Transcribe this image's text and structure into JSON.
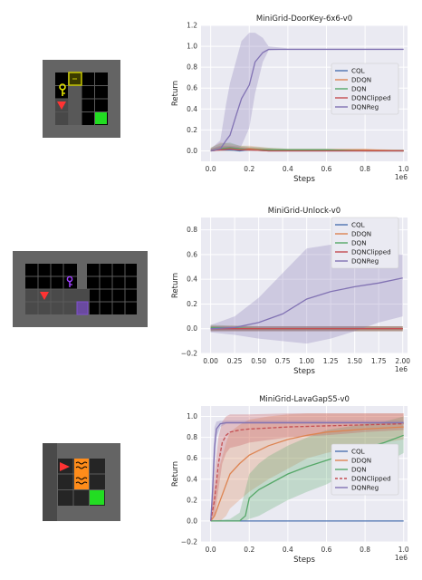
{
  "colors": {
    "CQL": "#4c72b0",
    "DDQN": "#dd8452",
    "DQN": "#55a868",
    "DQNClipped": "#c44e52",
    "DQNReg": "#8172b3",
    "plot_bg": "#eaeaf2",
    "grid": "#ffffff"
  },
  "environments": [
    {
      "name": "doorkey-6x6",
      "objects": [
        "yellow-door",
        "yellow-key",
        "red-agent",
        "green-goal"
      ]
    },
    {
      "name": "unlock",
      "objects": [
        "purple-key",
        "red-agent",
        "purple-door"
      ]
    },
    {
      "name": "lavagap-s5",
      "objects": [
        "red-agent",
        "orange-lava",
        "green-goal"
      ]
    }
  ],
  "chart_data": [
    {
      "type": "line",
      "title": "MiniGrid-DoorKey-6x6-v0",
      "xlabel": "Steps",
      "ylabel": "Return",
      "x_offset_label": "1e6",
      "xlim": [
        -0.05,
        1.02
      ],
      "ylim": [
        -0.1,
        1.2
      ],
      "xticks": [
        0.0,
        0.2,
        0.4,
        0.6,
        0.8,
        1.0
      ],
      "xtick_labels": [
        "0.0",
        "0.2",
        "0.4",
        "0.6",
        "0.8",
        "1.0"
      ],
      "yticks": [
        0.0,
        0.2,
        0.4,
        0.6,
        0.8,
        1.0,
        1.2
      ],
      "ytick_labels": [
        "0.0",
        "0.2",
        "0.4",
        "0.6",
        "0.8",
        "1.0",
        "1.2"
      ],
      "grid": true,
      "legend_position": "right",
      "series": [
        {
          "name": "CQL",
          "color_key": "CQL",
          "x": [
            0,
            0.05,
            0.1,
            0.15,
            0.2,
            0.3,
            0.4,
            0.6,
            0.8,
            1.0
          ],
          "y": [
            0,
            0.01,
            0.01,
            0,
            0.01,
            0,
            0,
            0,
            0,
            0
          ],
          "band_low": [
            0,
            0,
            0,
            0,
            0,
            0,
            0,
            0,
            0,
            0
          ],
          "band_high": [
            0.02,
            0.04,
            0.04,
            0.03,
            0.03,
            0.02,
            0.01,
            0.01,
            0.01,
            0.01
          ]
        },
        {
          "name": "DDQN",
          "color_key": "DDQN",
          "x": [
            0,
            0.05,
            0.1,
            0.15,
            0.2,
            0.3,
            0.4,
            0.6,
            0.8,
            1.0
          ],
          "y": [
            0,
            0.02,
            0.02,
            0.01,
            0.02,
            0.01,
            0.01,
            0.01,
            0.01,
            0
          ],
          "band_low": [
            0,
            0,
            0,
            0,
            0,
            0,
            0,
            0,
            0,
            0
          ],
          "band_high": [
            0.03,
            0.08,
            0.07,
            0.05,
            0.05,
            0.03,
            0.02,
            0.02,
            0.02,
            0.01
          ]
        },
        {
          "name": "DQN",
          "color_key": "DQN",
          "x": [
            0,
            0.05,
            0.1,
            0.15,
            0.2,
            0.3,
            0.4,
            0.6,
            0.8,
            1.0
          ],
          "y": [
            0,
            0.02,
            0.03,
            0.02,
            0.01,
            0.01,
            0.01,
            0.01,
            0,
            0
          ],
          "band_low": [
            0,
            0,
            0,
            0,
            0,
            0,
            0,
            0,
            0,
            0
          ],
          "band_high": [
            0.03,
            0.07,
            0.08,
            0.05,
            0.04,
            0.03,
            0.02,
            0.02,
            0.01,
            0.01
          ]
        },
        {
          "name": "DQNClipped",
          "color_key": "DQNClipped",
          "x": [
            0,
            0.05,
            0.1,
            0.15,
            0.2,
            0.3,
            0.4,
            0.6,
            0.8,
            1.0
          ],
          "y": [
            0,
            0.01,
            0.02,
            0.01,
            0.01,
            0,
            0,
            0,
            0,
            0
          ],
          "band_low": [
            0,
            0,
            0,
            0,
            0,
            0,
            0,
            0,
            0,
            0
          ],
          "band_high": [
            0.02,
            0.05,
            0.05,
            0.04,
            0.03,
            0.02,
            0.01,
            0.01,
            0.01,
            0.01
          ]
        },
        {
          "name": "DQNReg",
          "color_key": "DQNReg",
          "x": [
            0,
            0.05,
            0.08,
            0.1,
            0.13,
            0.16,
            0.2,
            0.23,
            0.27,
            0.3,
            0.4,
            0.6,
            0.8,
            1.0
          ],
          "y": [
            0,
            0.02,
            0.1,
            0.15,
            0.33,
            0.5,
            0.63,
            0.85,
            0.94,
            0.97,
            0.97,
            0.97,
            0.97,
            0.97
          ],
          "band_low": [
            0,
            0,
            0,
            0,
            0,
            0.05,
            0.22,
            0.55,
            0.85,
            0.96,
            0.97,
            0.97,
            0.97,
            0.97
          ],
          "band_high": [
            0.02,
            0.1,
            0.45,
            0.65,
            0.85,
            1.05,
            1.13,
            1.13,
            1.08,
            1.0,
            0.98,
            0.98,
            0.98,
            0.98
          ]
        }
      ]
    },
    {
      "type": "line",
      "title": "MiniGrid-Unlock-v0",
      "xlabel": "Steps",
      "ylabel": "Return",
      "x_offset_label": "1e6",
      "xlim": [
        -0.1,
        2.05
      ],
      "ylim": [
        -0.2,
        0.9
      ],
      "xticks": [
        0.0,
        0.25,
        0.5,
        0.75,
        1.0,
        1.25,
        1.5,
        1.75,
        2.0
      ],
      "xtick_labels": [
        "0.00",
        "0.25",
        "0.50",
        "0.75",
        "1.00",
        "1.25",
        "1.50",
        "1.75",
        "2.00"
      ],
      "yticks": [
        -0.2,
        0.0,
        0.2,
        0.4,
        0.6,
        0.8
      ],
      "ytick_labels": [
        "−0.2",
        "0.0",
        "0.2",
        "0.4",
        "0.6",
        "0.8"
      ],
      "grid": true,
      "legend_position": "top-right",
      "series": [
        {
          "name": "CQL",
          "color_key": "CQL",
          "x": [
            0,
            0.5,
            1.0,
            1.5,
            2.0
          ],
          "y": [
            0,
            0,
            0,
            0,
            0
          ],
          "band_low": [
            -0.02,
            -0.02,
            -0.02,
            -0.02,
            -0.02
          ],
          "band_high": [
            0.02,
            0.02,
            0.02,
            0.02,
            0.02
          ]
        },
        {
          "name": "DDQN",
          "color_key": "DDQN",
          "x": [
            0,
            0.5,
            1.0,
            1.5,
            2.0
          ],
          "y": [
            0.01,
            0,
            0,
            0,
            0
          ],
          "band_low": [
            -0.02,
            -0.02,
            -0.02,
            -0.02,
            -0.02
          ],
          "band_high": [
            0.03,
            0.02,
            0.02,
            0.02,
            0.02
          ]
        },
        {
          "name": "DQN",
          "color_key": "DQN",
          "x": [
            0,
            0.5,
            1.0,
            1.5,
            2.0
          ],
          "y": [
            0.01,
            0,
            0,
            0,
            0
          ],
          "band_low": [
            -0.02,
            -0.02,
            -0.02,
            -0.02,
            -0.02
          ],
          "band_high": [
            0.03,
            0.02,
            0.02,
            0.02,
            0.02
          ]
        },
        {
          "name": "DQNClipped",
          "color_key": "DQNClipped",
          "x": [
            0,
            0.5,
            1.0,
            1.5,
            2.0
          ],
          "y": [
            0,
            0,
            0,
            0,
            0
          ],
          "band_low": [
            -0.02,
            -0.02,
            -0.02,
            -0.02,
            -0.02
          ],
          "band_high": [
            0.02,
            0.02,
            0.02,
            0.02,
            0.02
          ]
        },
        {
          "name": "DQNReg",
          "color_key": "DQNReg",
          "x": [
            0,
            0.25,
            0.5,
            0.75,
            1.0,
            1.25,
            1.5,
            1.75,
            2.0
          ],
          "y": [
            0,
            0.01,
            0.05,
            0.12,
            0.24,
            0.3,
            0.34,
            0.37,
            0.41
          ],
          "band_low": [
            -0.03,
            -0.05,
            -0.08,
            -0.1,
            -0.12,
            -0.08,
            -0.02,
            0.05,
            0.1
          ],
          "band_high": [
            0.03,
            0.1,
            0.25,
            0.45,
            0.65,
            0.68,
            0.65,
            0.62,
            0.6
          ]
        }
      ]
    },
    {
      "type": "line",
      "title": "MiniGrid-LavaGapS5-v0",
      "xlabel": "Steps",
      "ylabel": "Return",
      "x_offset_label": "1e6",
      "xlim": [
        -0.05,
        1.02
      ],
      "ylim": [
        -0.2,
        1.1
      ],
      "xticks": [
        0.0,
        0.2,
        0.4,
        0.6,
        0.8,
        1.0
      ],
      "xtick_labels": [
        "0.0",
        "0.2",
        "0.4",
        "0.6",
        "0.8",
        "1.0"
      ],
      "yticks": [
        -0.2,
        0.0,
        0.2,
        0.4,
        0.6,
        0.8,
        1.0
      ],
      "ytick_labels": [
        "−0.2",
        "0.0",
        "0.2",
        "0.4",
        "0.6",
        "0.8",
        "1.0"
      ],
      "grid": true,
      "legend_position": "right",
      "series": [
        {
          "name": "CQL",
          "color_key": "CQL",
          "x": [
            0,
            0.2,
            0.4,
            0.6,
            0.8,
            1.0
          ],
          "y": [
            0,
            0,
            0,
            0,
            0,
            0
          ],
          "band_low": [
            0,
            0,
            0,
            0,
            0,
            0
          ],
          "band_high": [
            0,
            0,
            0,
            0,
            0,
            0
          ]
        },
        {
          "name": "DDQN",
          "color_key": "DDQN",
          "x": [
            0,
            0.02,
            0.05,
            0.08,
            0.1,
            0.15,
            0.2,
            0.3,
            0.4,
            0.5,
            0.6,
            0.8,
            1.0
          ],
          "y": [
            0,
            0.05,
            0.2,
            0.35,
            0.45,
            0.55,
            0.63,
            0.72,
            0.78,
            0.82,
            0.85,
            0.88,
            0.9
          ],
          "band_low": [
            0,
            0,
            0,
            0.05,
            0.12,
            0.2,
            0.28,
            0.4,
            0.5,
            0.6,
            0.65,
            0.72,
            0.78
          ],
          "band_high": [
            0.05,
            0.3,
            0.55,
            0.75,
            0.85,
            0.92,
            0.97,
            1.0,
            1.02,
            1.03,
            1.03,
            1.03,
            1.03
          ]
        },
        {
          "name": "DQN",
          "color_key": "DQN",
          "x": [
            0,
            0.1,
            0.15,
            0.18,
            0.2,
            0.25,
            0.3,
            0.4,
            0.5,
            0.6,
            0.7,
            0.8,
            0.9,
            1.0
          ],
          "y": [
            0,
            0,
            0,
            0.05,
            0.22,
            0.3,
            0.35,
            0.45,
            0.52,
            0.58,
            0.64,
            0.7,
            0.75,
            0.82
          ],
          "band_low": [
            0,
            0,
            0,
            0,
            0.02,
            0.05,
            0.1,
            0.2,
            0.28,
            0.35,
            0.45,
            0.5,
            0.55,
            0.65
          ],
          "band_high": [
            0,
            0.02,
            0.08,
            0.3,
            0.45,
            0.55,
            0.62,
            0.72,
            0.8,
            0.87,
            0.9,
            0.93,
            0.95,
            1.0
          ]
        },
        {
          "name": "DQNClipped",
          "color_key": "DQNClipped",
          "dashed": true,
          "x": [
            0,
            0.02,
            0.04,
            0.06,
            0.08,
            0.1,
            0.15,
            0.2,
            0.4,
            0.6,
            0.8,
            1.0
          ],
          "y": [
            0,
            0.2,
            0.55,
            0.75,
            0.82,
            0.85,
            0.87,
            0.88,
            0.9,
            0.91,
            0.92,
            0.93
          ],
          "band_low": [
            0,
            0.05,
            0.3,
            0.55,
            0.65,
            0.7,
            0.72,
            0.75,
            0.8,
            0.82,
            0.85,
            0.87
          ],
          "band_high": [
            0.05,
            0.45,
            0.8,
            0.95,
            1.0,
            1.02,
            1.02,
            1.02,
            1.03,
            1.03,
            1.03,
            1.03
          ]
        },
        {
          "name": "DQNReg",
          "color_key": "DQNReg",
          "x": [
            0,
            0.01,
            0.02,
            0.03,
            0.05,
            0.08,
            0.1,
            0.2,
            0.4,
            0.6,
            0.8,
            1.0
          ],
          "y": [
            0,
            0.3,
            0.7,
            0.88,
            0.93,
            0.94,
            0.94,
            0.94,
            0.94,
            0.94,
            0.94,
            0.94
          ],
          "band_low": [
            0,
            0.15,
            0.5,
            0.8,
            0.9,
            0.93,
            0.93,
            0.93,
            0.93,
            0.93,
            0.93,
            0.93
          ],
          "band_high": [
            0,
            0.5,
            0.9,
            0.95,
            0.96,
            0.96,
            0.96,
            0.96,
            0.96,
            0.96,
            0.96,
            0.96
          ]
        }
      ]
    }
  ]
}
